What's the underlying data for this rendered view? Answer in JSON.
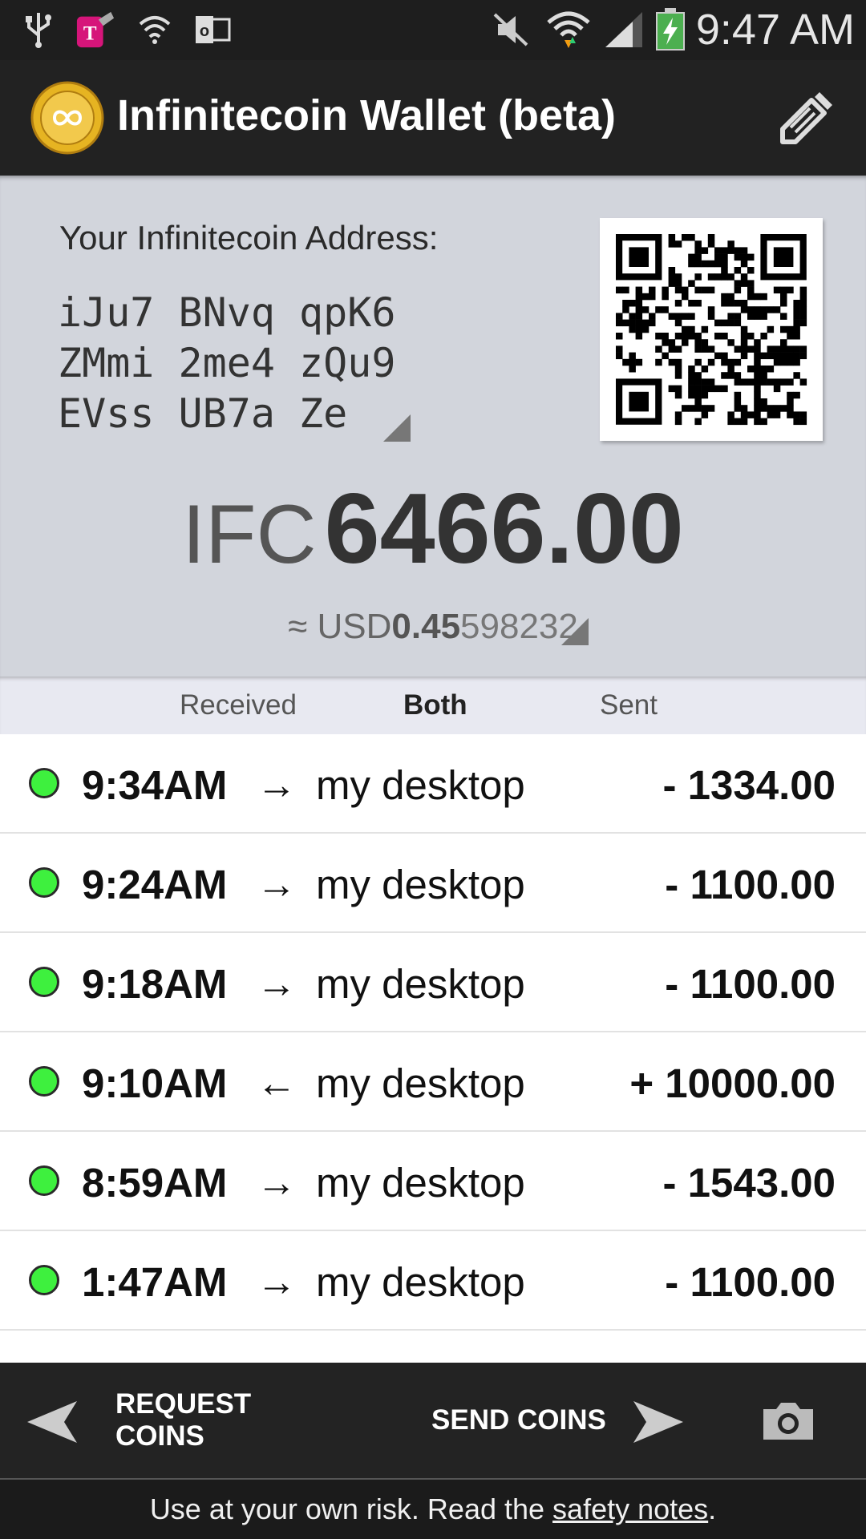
{
  "status_bar": {
    "time": "9:47 AM",
    "left_icons": [
      "usb-icon",
      "tmobile-app-icon",
      "security-shield-icon",
      "outlook-icon"
    ],
    "right_icons": [
      "mute-icon",
      "wifi-icon",
      "signal-icon",
      "battery-charging-icon"
    ]
  },
  "header": {
    "title": "Infinitecoin Wallet (beta)",
    "logo_icon": "infinitecoin-logo-icon",
    "action_icon": "edit-label-icon"
  },
  "address": {
    "label": "Your Infinitecoin Address:",
    "lines": [
      "iJu7 BNvq qpK6",
      "ZMmi 2me4 zQu9",
      "EVss UB7a Ze"
    ]
  },
  "balance": {
    "prefix": "IFC",
    "value": "6466.00",
    "fiat_approx": "≈ USD",
    "fiat_strong": "0.45",
    "fiat_rest": "598232"
  },
  "tabs": [
    {
      "label": "Received",
      "active": false
    },
    {
      "label": "Both",
      "active": true
    },
    {
      "label": "Sent",
      "active": false
    }
  ],
  "transactions": [
    {
      "time": "9:34AM",
      "arrow": "→",
      "label": "my desktop",
      "amount": "- 1334.00"
    },
    {
      "time": "9:24AM",
      "arrow": "→",
      "label": "my desktop",
      "amount": "- 1100.00"
    },
    {
      "time": "9:18AM",
      "arrow": "→",
      "label": "my desktop",
      "amount": "- 1100.00"
    },
    {
      "time": "9:10AM",
      "arrow": "←",
      "label": "my desktop",
      "amount": "+ 10000.00"
    },
    {
      "time": "8:59AM",
      "arrow": "→",
      "label": "my desktop",
      "amount": "- 1543.00"
    },
    {
      "time": "1:47AM",
      "arrow": "→",
      "label": "my desktop",
      "amount": "- 1100.00"
    }
  ],
  "bottom_bar": {
    "request_label": "REQUEST COINS",
    "send_label": "SEND COINS",
    "camera_icon": "camera-icon"
  },
  "footer": {
    "text_before": "Use at your own risk. Read the ",
    "link": "safety notes",
    "text_after": "."
  }
}
